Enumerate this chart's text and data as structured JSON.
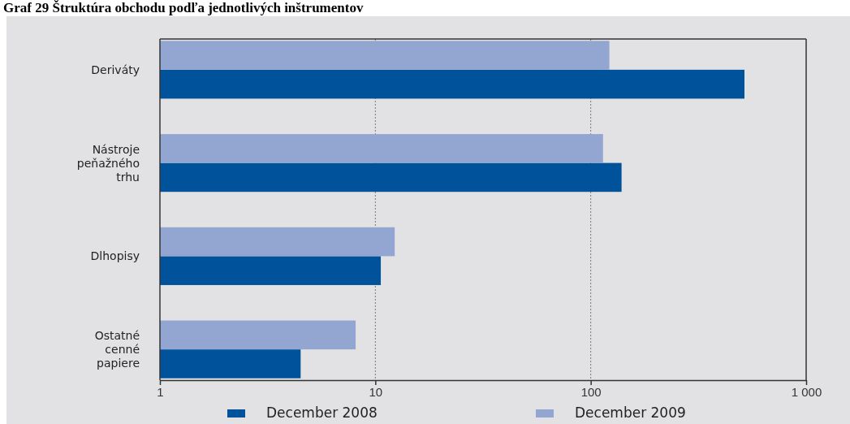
{
  "chart_data": {
    "type": "bar",
    "orientation": "horizontal",
    "title": "Graf 29 Štruktúra obchodu podľa jednotlivých inštrumentov",
    "categories": [
      "Deriváty",
      "Nástroje peňažného trhu",
      "Dlhopisy",
      "Ostatné cenné papiere"
    ],
    "series": [
      {
        "name": "December 2008",
        "color": "#00529b",
        "values": [
          517,
          139,
          10.6,
          4.5
        ]
      },
      {
        "name": "December 2009",
        "color": "#93a6d1",
        "values": [
          122,
          114,
          12.3,
          8.1
        ]
      }
    ],
    "log": "x",
    "xlim": [
      1,
      1000
    ],
    "xticks": [
      1,
      10,
      100,
      {
        "value": 1000,
        "label": "1 000"
      }
    ],
    "grid": "x",
    "legend": "bottom"
  }
}
